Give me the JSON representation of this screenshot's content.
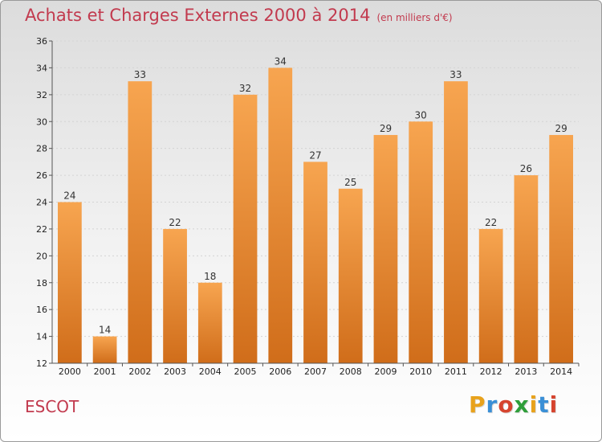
{
  "title": "Achats et Charges Externes 2000 à 2014",
  "title_unit": "(en milliers d'€)",
  "commune": "ESCOT",
  "logo": {
    "text": "Proxiti",
    "letter_colors": [
      "#e8a21c",
      "#3a8fd6",
      "#d6442e",
      "#2f9e3a",
      "#e8a21c",
      "#3a8fd6",
      "#d6442e"
    ]
  },
  "colors": {
    "bar_top": "#f7a550",
    "bar_bottom": "#d06d1a",
    "accent": "#c23a4e"
  },
  "chart_data": {
    "type": "bar",
    "title": "Achats et Charges Externes 2000 à 2014",
    "xlabel": "",
    "ylabel": "",
    "categories": [
      "2000",
      "2001",
      "2002",
      "2003",
      "2004",
      "2005",
      "2006",
      "2007",
      "2008",
      "2009",
      "2010",
      "2011",
      "2012",
      "2013",
      "2014"
    ],
    "values": [
      24,
      14,
      33,
      22,
      18,
      32,
      34,
      27,
      25,
      29,
      30,
      33,
      22,
      26,
      29
    ],
    "ylim": [
      12,
      36
    ],
    "yticks": [
      12,
      14,
      16,
      18,
      20,
      22,
      24,
      26,
      28,
      30,
      32,
      34,
      36
    ],
    "grid": true,
    "data_labels": true
  }
}
